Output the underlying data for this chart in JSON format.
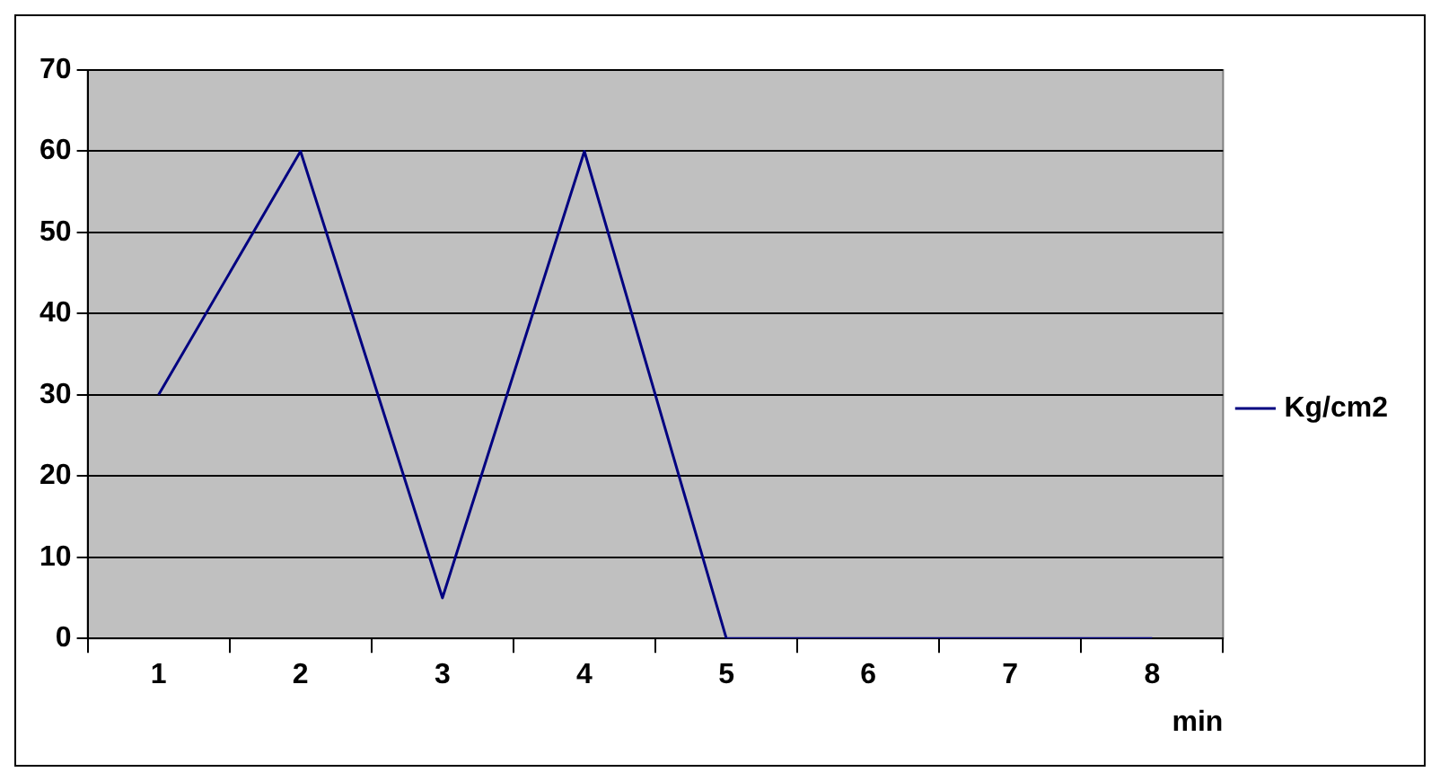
{
  "chart_data": {
    "type": "line",
    "xlabel": "min",
    "categories": [
      "1",
      "2",
      "3",
      "4",
      "5",
      "6",
      "7",
      "8"
    ],
    "series": [
      {
        "name": "Kg/cm2",
        "color": "#000080",
        "values": [
          30,
          60,
          5,
          60,
          0,
          0,
          0,
          0
        ]
      }
    ],
    "ylim": [
      0,
      70
    ],
    "yticks": [
      0,
      10,
      20,
      30,
      40,
      50,
      60,
      70
    ],
    "grid": "y",
    "legend": "right",
    "marker": "none"
  }
}
